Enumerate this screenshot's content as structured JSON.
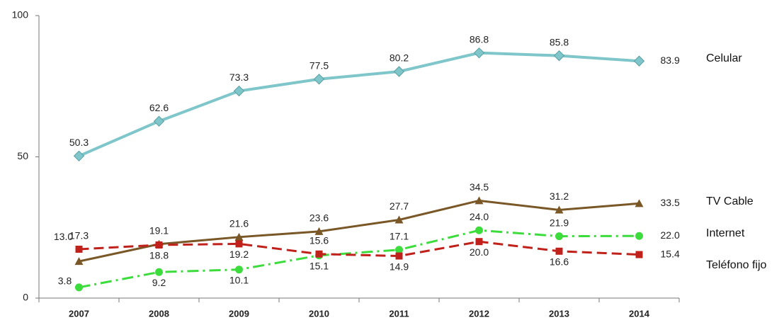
{
  "chart_data": {
    "type": "line",
    "categories": [
      "2007",
      "2008",
      "2009",
      "2010",
      "2011",
      "2012",
      "2013",
      "2014"
    ],
    "ylim": [
      0,
      100
    ],
    "yticks": [
      0,
      50,
      100
    ],
    "grid": false,
    "series": [
      {
        "name": "Celular",
        "color": "#7fc6ca",
        "marker": "diamond",
        "dash": "solid",
        "values": [
          50.3,
          62.6,
          73.3,
          77.5,
          80.2,
          86.8,
          85.8,
          83.9
        ],
        "value_labels": [
          "50.3",
          "62.6",
          "73.3",
          "77.5",
          "80.2",
          "86.8",
          "85.8",
          "83.9"
        ]
      },
      {
        "name": "TV Cable",
        "color": "#7a5726",
        "marker": "triangle",
        "dash": "solid",
        "values": [
          13.0,
          19.1,
          21.6,
          23.6,
          27.7,
          34.5,
          31.2,
          33.5
        ],
        "value_labels": [
          "13.0",
          "19.1",
          "21.6",
          "23.6",
          "27.7",
          "34.5",
          "31.2",
          "33.5"
        ]
      },
      {
        "name": "Internet",
        "color": "#3ddc3d",
        "marker": "circle",
        "dash": "dashdot",
        "values": [
          3.8,
          9.2,
          10.1,
          15.1,
          17.1,
          24.0,
          21.9,
          22.0
        ],
        "value_labels": [
          "3.8",
          "9.2",
          "10.1",
          "15.1",
          "17.1",
          "24.0",
          "21.9",
          "22.0"
        ]
      },
      {
        "name": "Teléfono fijo",
        "color": "#c0211b",
        "marker": "square",
        "dash": "dashed",
        "values": [
          17.3,
          18.8,
          19.2,
          15.6,
          14.9,
          20.0,
          16.6,
          15.4
        ],
        "value_labels": [
          "17.3",
          "18.8",
          "19.2",
          "15.6",
          "14.9",
          "20.0",
          "16.6",
          "15.4"
        ]
      }
    ]
  }
}
